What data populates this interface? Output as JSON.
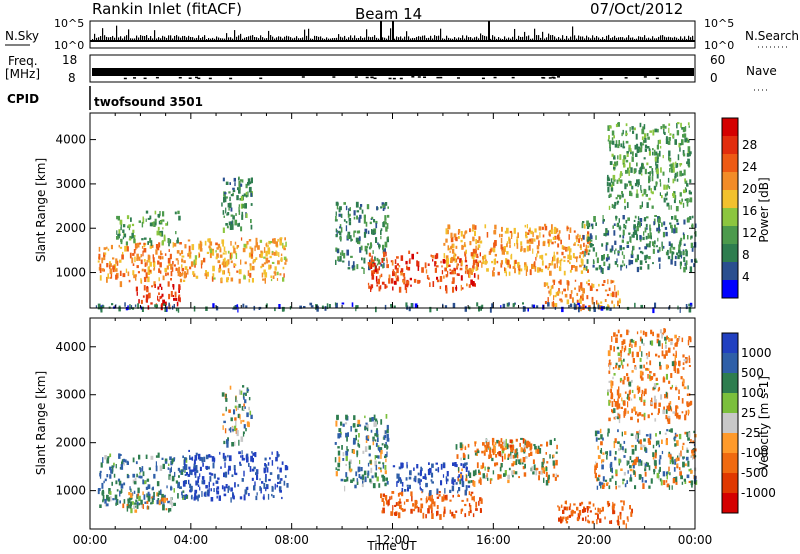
{
  "header": {
    "title_left": "Rankin Inlet (fitACF)",
    "title_center": "Beam 14",
    "title_right": "07/Oct/2012"
  },
  "top_panels": {
    "nsky_label": "N.Sky",
    "nsky_ticks": [
      "10^5",
      "10^0"
    ],
    "nsearch_label": "N.Search",
    "nsearch_ticks": [
      "10^5",
      "10^0"
    ],
    "freq_label_line1": "Freq.",
    "freq_label_line2": "[MHz]",
    "freq_ticks": [
      "18",
      "8"
    ],
    "nave_label": "Nave",
    "nave_ticks": [
      "60",
      "0"
    ],
    "cpid_label": "CPID",
    "cpid_value": "twofsound 3501"
  },
  "colors": {
    "power": [
      "#0000ff",
      "#2a4f8f",
      "#2e7d4f",
      "#4c9a4c",
      "#8cc63f",
      "#f2c12e",
      "#f28c28",
      "#ee5a14",
      "#e22d0d",
      "#d40000"
    ],
    "velocity": [
      "#2140c0",
      "#2f5fa8",
      "#2e7d4f",
      "#7bbf3c",
      "#c8c8c8",
      "#ff9a2a",
      "#f06a10",
      "#e03800",
      "#d40000"
    ]
  },
  "chart_data": [
    {
      "type": "heatmap",
      "name": "power",
      "xlabel": "",
      "ylabel": "Slant Range [km]",
      "x_ticks": [
        "00:00",
        "04:00",
        "08:00",
        "12:00",
        "16:00",
        "20:00",
        "00:00"
      ],
      "xlim_hours": [
        0,
        24
      ],
      "ylim": [
        200,
        4600
      ],
      "y_ticks": [
        1000,
        2000,
        3000,
        4000
      ],
      "colorbar": {
        "label": "Power [dB]",
        "ticks": [
          "28",
          "24",
          "20",
          "16",
          "12",
          "8",
          "4"
        ],
        "range": [
          0,
          30
        ]
      },
      "regions": [
        {
          "t": [
            0.3,
            3.8
          ],
          "r": [
            800,
            1700
          ],
          "value": 20
        },
        {
          "t": [
            1.0,
            3.5
          ],
          "r": [
            1700,
            2400
          ],
          "value": 10
        },
        {
          "t": [
            1.8,
            3.6
          ],
          "r": [
            250,
            750
          ],
          "value": 26
        },
        {
          "t": [
            3.6,
            7.8
          ],
          "r": [
            850,
            1800
          ],
          "value": 18
        },
        {
          "t": [
            5.2,
            6.4
          ],
          "r": [
            2000,
            3200
          ],
          "value": 9
        },
        {
          "t": [
            9.7,
            11.8
          ],
          "r": [
            1100,
            2600
          ],
          "value": 8
        },
        {
          "t": [
            11.0,
            15.5
          ],
          "r": [
            650,
            1500
          ],
          "value": 24
        },
        {
          "t": [
            14.0,
            19.8
          ],
          "r": [
            1000,
            2100
          ],
          "value": 19
        },
        {
          "t": [
            18.0,
            21.0
          ],
          "r": [
            250,
            850
          ],
          "value": 20
        },
        {
          "t": [
            19.5,
            24.0
          ],
          "r": [
            1100,
            2300
          ],
          "value": 8
        },
        {
          "t": [
            20.5,
            23.8
          ],
          "r": [
            2500,
            4400
          ],
          "value": 10
        },
        {
          "t": [
            0.0,
            24.0
          ],
          "r": [
            210,
            330
          ],
          "value": 5
        }
      ]
    },
    {
      "type": "heatmap",
      "name": "velocity",
      "xlabel": "Time UT",
      "ylabel": "Slant Range [km]",
      "x_ticks": [
        "00:00",
        "04:00",
        "08:00",
        "12:00",
        "16:00",
        "20:00",
        "00:00"
      ],
      "xlim_hours": [
        0,
        24
      ],
      "ylim": [
        200,
        4600
      ],
      "y_ticks": [
        1000,
        2000,
        3000,
        4000
      ],
      "colorbar": {
        "label": "Velocity [m s-1]",
        "ticks": [
          "1000",
          "500",
          "100",
          "25",
          "-25",
          "-100",
          "-500",
          "-1000"
        ],
        "range": [
          -1200,
          1200
        ]
      },
      "regions": [
        {
          "t": [
            0.3,
            3.8
          ],
          "r": [
            700,
            1800
          ],
          "value": 300
        },
        {
          "t": [
            1.2,
            3.2
          ],
          "r": [
            600,
            1000
          ],
          "value": 0
        },
        {
          "t": [
            3.6,
            7.8
          ],
          "r": [
            850,
            1850
          ],
          "value": 800
        },
        {
          "t": [
            5.2,
            6.4
          ],
          "r": [
            2000,
            3200
          ],
          "value": 150
        },
        {
          "t": [
            9.7,
            11.8
          ],
          "r": [
            1100,
            2600
          ],
          "value": 200
        },
        {
          "t": [
            11.5,
            15.5
          ],
          "r": [
            500,
            1000
          ],
          "value": -400
        },
        {
          "t": [
            12.0,
            15.0
          ],
          "r": [
            1000,
            1600
          ],
          "value": 700
        },
        {
          "t": [
            14.5,
            18.5
          ],
          "r": [
            1200,
            2100
          ],
          "value": 0
        },
        {
          "t": [
            15.5,
            17.5
          ],
          "r": [
            1700,
            2100
          ],
          "value": -300
        },
        {
          "t": [
            18.5,
            21.5
          ],
          "r": [
            300,
            800
          ],
          "value": -400
        },
        {
          "t": [
            20.0,
            24.0
          ],
          "r": [
            1100,
            2300
          ],
          "value": 100
        },
        {
          "t": [
            20.5,
            23.8
          ],
          "r": [
            2500,
            4400
          ],
          "value": -200
        }
      ]
    }
  ]
}
